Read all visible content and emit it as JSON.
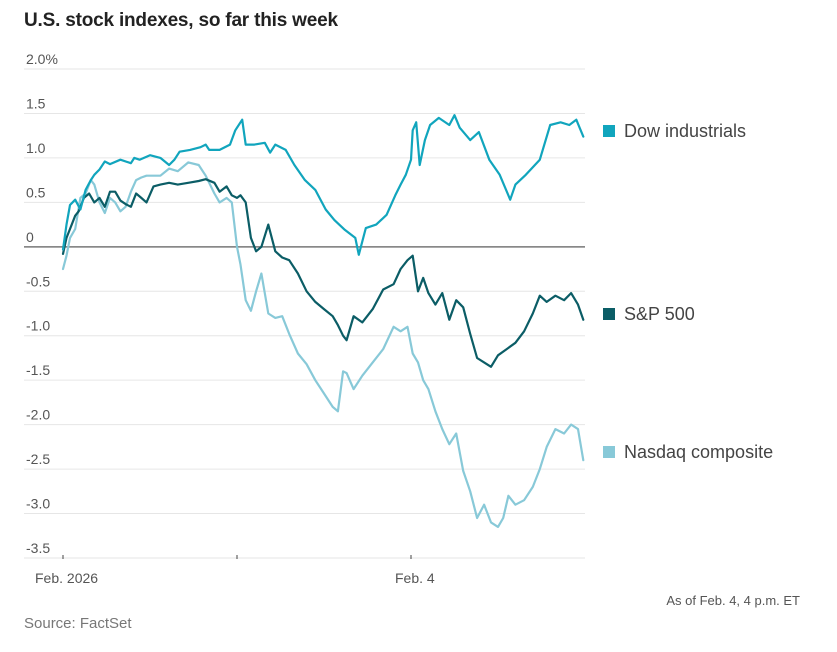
{
  "chart_data": {
    "type": "line",
    "title": "U.S. stock indexes, so far this week",
    "xlabel": "",
    "ylabel": "",
    "ylim": [
      -3.5,
      2.0
    ],
    "xlim": [
      0,
      3
    ],
    "grid": true,
    "yticks": [
      {
        "value": 2.0,
        "label": "2.0%"
      },
      {
        "value": 1.5,
        "label": "1.5"
      },
      {
        "value": 1.0,
        "label": "1.0"
      },
      {
        "value": 0.5,
        "label": "0.5"
      },
      {
        "value": 0,
        "label": "0"
      },
      {
        "value": -0.5,
        "label": "-0.5"
      },
      {
        "value": -1.0,
        "label": "-1.0"
      },
      {
        "value": -1.5,
        "label": "-1.5"
      },
      {
        "value": -2.0,
        "label": "-2.0"
      },
      {
        "value": -2.5,
        "label": "-2.5"
      },
      {
        "value": -3.0,
        "label": "-3.0"
      },
      {
        "value": -3.5,
        "label": "-3.5"
      }
    ],
    "xticks": [
      {
        "value": 0,
        "label": "Feb. 2026"
      },
      {
        "value": 1,
        "label": ""
      },
      {
        "value": 2,
        "label": "Feb. 4"
      }
    ],
    "legend_placement": "right, at line ends",
    "series": [
      {
        "name": "Dow industrials",
        "color": "#11a5bd",
        "x": [
          0,
          0.02,
          0.04,
          0.07,
          0.1,
          0.13,
          0.16,
          0.18,
          0.21,
          0.24,
          0.27,
          0.33,
          0.39,
          0.41,
          0.44,
          0.5,
          0.56,
          0.61,
          0.64,
          0.67,
          0.73,
          0.79,
          0.82,
          0.84,
          0.9,
          0.96,
          0.99,
          1.03,
          1.05,
          1.1,
          1.16,
          1.19,
          1.22,
          1.28,
          1.33,
          1.39,
          1.45,
          1.51,
          1.56,
          1.62,
          1.68,
          1.7,
          1.74,
          1.8,
          1.86,
          1.91,
          1.94,
          1.97,
          2.0,
          2.01,
          2.03,
          2.05,
          2.08,
          2.11,
          2.16,
          2.22,
          2.25,
          2.28,
          2.34,
          2.39,
          2.45,
          2.51,
          2.57,
          2.6,
          2.66,
          2.74,
          2.8,
          2.86,
          2.91,
          2.95,
          2.99
        ],
        "values": [
          -0.03,
          0.25,
          0.47,
          0.53,
          0.42,
          0.64,
          0.75,
          0.81,
          0.87,
          0.96,
          0.93,
          0.98,
          0.94,
          1.0,
          0.98,
          1.03,
          1.0,
          0.92,
          0.98,
          1.07,
          1.09,
          1.12,
          1.15,
          1.09,
          1.09,
          1.15,
          1.31,
          1.43,
          1.15,
          1.15,
          1.17,
          1.06,
          1.15,
          1.09,
          0.92,
          0.75,
          0.64,
          0.42,
          0.3,
          0.19,
          0.1,
          -0.09,
          0.21,
          0.25,
          0.36,
          0.58,
          0.7,
          0.81,
          0.98,
          1.31,
          1.4,
          0.92,
          1.2,
          1.37,
          1.45,
          1.37,
          1.48,
          1.34,
          1.2,
          1.29,
          0.98,
          0.81,
          0.53,
          0.7,
          0.81,
          0.98,
          1.37,
          1.4,
          1.37,
          1.43,
          1.24
        ]
      },
      {
        "name": "S&P 500",
        "color": "#0b5d66",
        "x": [
          0,
          0.02,
          0.04,
          0.07,
          0.09,
          0.12,
          0.15,
          0.18,
          0.21,
          0.24,
          0.27,
          0.3,
          0.33,
          0.36,
          0.39,
          0.42,
          0.45,
          0.48,
          0.52,
          0.56,
          0.61,
          0.66,
          0.72,
          0.78,
          0.82,
          0.87,
          0.9,
          0.94,
          0.97,
          1.0,
          1.02,
          1.05,
          1.08,
          1.11,
          1.14,
          1.18,
          1.22,
          1.26,
          1.3,
          1.35,
          1.4,
          1.45,
          1.5,
          1.55,
          1.58,
          1.61,
          1.63,
          1.67,
          1.72,
          1.78,
          1.84,
          1.9,
          1.94,
          1.98,
          2.01,
          2.04,
          2.07,
          2.1,
          2.14,
          2.18,
          2.22,
          2.26,
          2.3,
          2.34,
          2.38,
          2.42,
          2.46,
          2.5,
          2.55,
          2.6,
          2.65,
          2.7,
          2.74,
          2.78,
          2.83,
          2.88,
          2.92,
          2.96,
          2.99
        ],
        "values": [
          -0.08,
          0.1,
          0.2,
          0.35,
          0.4,
          0.55,
          0.6,
          0.5,
          0.55,
          0.45,
          0.62,
          0.62,
          0.52,
          0.48,
          0.45,
          0.6,
          0.55,
          0.5,
          0.68,
          0.7,
          0.72,
          0.7,
          0.72,
          0.74,
          0.76,
          0.72,
          0.62,
          0.68,
          0.58,
          0.55,
          0.58,
          0.5,
          0.1,
          -0.05,
          0.0,
          0.25,
          -0.05,
          -0.12,
          -0.15,
          -0.3,
          -0.5,
          -0.62,
          -0.7,
          -0.78,
          -0.88,
          -1.0,
          -1.05,
          -0.78,
          -0.85,
          -0.7,
          -0.48,
          -0.42,
          -0.25,
          -0.15,
          -0.1,
          -0.5,
          -0.35,
          -0.52,
          -0.65,
          -0.52,
          -0.82,
          -0.6,
          -0.68,
          -0.98,
          -1.25,
          -1.3,
          -1.35,
          -1.22,
          -1.15,
          -1.08,
          -0.95,
          -0.75,
          -0.55,
          -0.62,
          -0.55,
          -0.6,
          -0.52,
          -0.65,
          -0.82
        ]
      },
      {
        "name": "Nasdaq composite",
        "color": "#88c9d8",
        "x": [
          0,
          0.02,
          0.04,
          0.07,
          0.1,
          0.13,
          0.16,
          0.18,
          0.21,
          0.24,
          0.27,
          0.3,
          0.33,
          0.36,
          0.39,
          0.42,
          0.45,
          0.48,
          0.52,
          0.56,
          0.61,
          0.66,
          0.72,
          0.78,
          0.82,
          0.87,
          0.9,
          0.94,
          0.97,
          1.0,
          1.02,
          1.05,
          1.08,
          1.11,
          1.14,
          1.18,
          1.22,
          1.26,
          1.3,
          1.35,
          1.4,
          1.45,
          1.5,
          1.55,
          1.58,
          1.61,
          1.63,
          1.67,
          1.72,
          1.78,
          1.84,
          1.9,
          1.94,
          1.98,
          2.01,
          2.04,
          2.07,
          2.1,
          2.14,
          2.18,
          2.22,
          2.26,
          2.3,
          2.34,
          2.38,
          2.42,
          2.46,
          2.5,
          2.53,
          2.56,
          2.6,
          2.65,
          2.7,
          2.74,
          2.78,
          2.83,
          2.88,
          2.92,
          2.96,
          2.99
        ],
        "values": [
          -0.25,
          -0.1,
          0.1,
          0.2,
          0.55,
          0.6,
          0.75,
          0.7,
          0.5,
          0.38,
          0.55,
          0.5,
          0.4,
          0.45,
          0.62,
          0.75,
          0.78,
          0.8,
          0.8,
          0.8,
          0.88,
          0.85,
          0.95,
          0.92,
          0.8,
          0.6,
          0.5,
          0.55,
          0.5,
          0.0,
          -0.2,
          -0.6,
          -0.72,
          -0.5,
          -0.3,
          -0.75,
          -0.8,
          -0.78,
          -0.98,
          -1.2,
          -1.32,
          -1.5,
          -1.65,
          -1.8,
          -1.85,
          -1.4,
          -1.42,
          -1.6,
          -1.45,
          -1.3,
          -1.15,
          -0.9,
          -0.95,
          -0.9,
          -1.2,
          -1.3,
          -1.5,
          -1.6,
          -1.85,
          -2.05,
          -2.22,
          -2.1,
          -2.52,
          -2.75,
          -3.05,
          -2.9,
          -3.1,
          -3.15,
          -3.05,
          -2.8,
          -2.9,
          -2.85,
          -2.7,
          -2.5,
          -2.25,
          -2.05,
          -2.1,
          -2.0,
          -2.05,
          -2.4
        ]
      }
    ]
  },
  "header": {
    "title": "U.S. stock indexes, so far this week"
  },
  "footer": {
    "note": "As of Feb. 4, 4 p.m. ET",
    "source": "Source: FactSet"
  }
}
